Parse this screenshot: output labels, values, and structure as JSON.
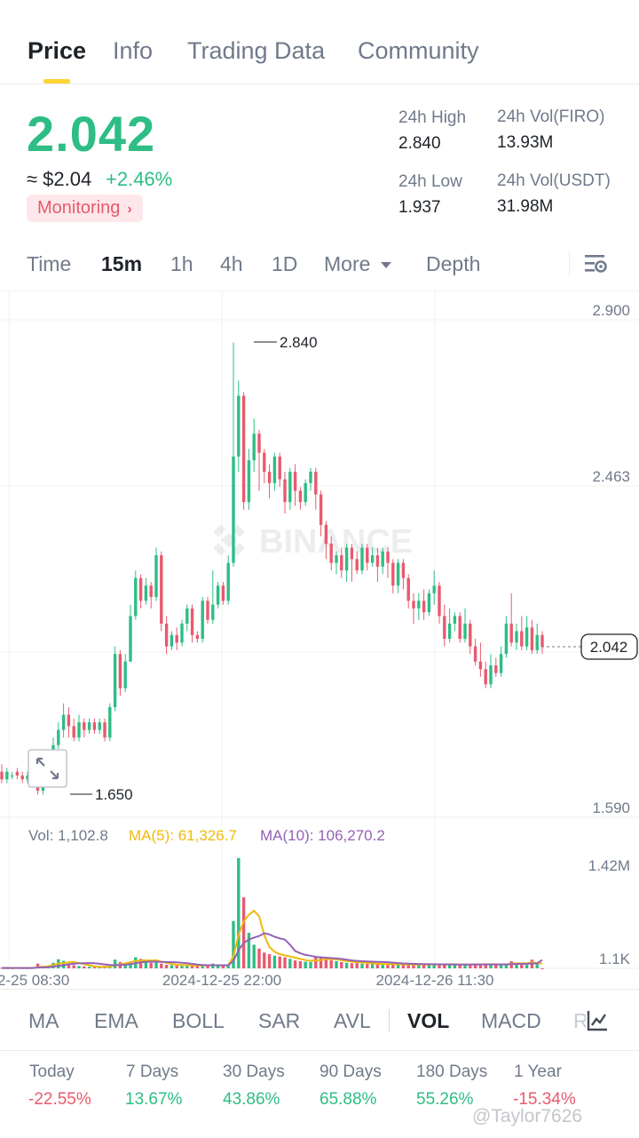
{
  "tabs": [
    {
      "label": "Price",
      "active": true
    },
    {
      "label": "Info"
    },
    {
      "label": "Trading Data"
    },
    {
      "label": "Community"
    }
  ],
  "price": {
    "last": "2.042",
    "usd": "≈ $2.04",
    "change": "+2.46%",
    "monitor_label": "Monitoring",
    "monitor_chevron": "›"
  },
  "stats": {
    "high_label": "24h High",
    "high_value": "2.840",
    "low_label": "24h Low",
    "low_value": "1.937",
    "vol_base_label": "24h Vol(FIRO)",
    "vol_base_value": "13.93M",
    "vol_quote_label": "24h Vol(USDT)",
    "vol_quote_value": "31.98M"
  },
  "timeframes": {
    "items": [
      "Time",
      "15m",
      "1h",
      "4h",
      "1D"
    ],
    "active": "15m",
    "more_label": "More",
    "depth_label": "Depth",
    "settings_icon": "chart-settings-icon"
  },
  "chart_data": {
    "type": "candlestick",
    "y_axis_labels": [
      "2.900",
      "2.463",
      "2.042",
      "1.590"
    ],
    "ylim": [
      1.59,
      2.9
    ],
    "x_axis_labels": [
      "2-25 08:30",
      "2024-12-25 22:00",
      "2024-12-26 11:30"
    ],
    "high_marker": "2.840",
    "low_marker": "1.650",
    "current_price_tag": "2.042",
    "watermark": "BINANCE",
    "colors": {
      "up": "#2ebd85",
      "down": "#e85a6e",
      "ma5": "#f0b90b",
      "ma10": "#9461b5"
    },
    "candles": [
      [
        1.71,
        1.69,
        1.73,
        1.68
      ],
      [
        1.69,
        1.71,
        1.72,
        1.68
      ],
      [
        1.7,
        1.7,
        1.71,
        1.69
      ],
      [
        1.71,
        1.7,
        1.72,
        1.69
      ],
      [
        1.7,
        1.69,
        1.71,
        1.68
      ],
      [
        1.69,
        1.7,
        1.71,
        1.68
      ],
      [
        1.69,
        1.68,
        1.7,
        1.67
      ],
      [
        1.68,
        1.66,
        1.69,
        1.65
      ],
      [
        1.66,
        1.69,
        1.7,
        1.65
      ],
      [
        1.69,
        1.72,
        1.73,
        1.68
      ],
      [
        1.72,
        1.78,
        1.8,
        1.71
      ],
      [
        1.78,
        1.82,
        1.84,
        1.77
      ],
      [
        1.82,
        1.86,
        1.89,
        1.8
      ],
      [
        1.86,
        1.83,
        1.88,
        1.8
      ],
      [
        1.83,
        1.8,
        1.85,
        1.79
      ],
      [
        1.8,
        1.84,
        1.86,
        1.79
      ],
      [
        1.84,
        1.82,
        1.85,
        1.8
      ],
      [
        1.82,
        1.84,
        1.85,
        1.81
      ],
      [
        1.84,
        1.82,
        1.85,
        1.81
      ],
      [
        1.82,
        1.84,
        1.85,
        1.81
      ],
      [
        1.84,
        1.8,
        1.85,
        1.79
      ],
      [
        1.8,
        1.88,
        1.89,
        1.79
      ],
      [
        1.88,
        2.02,
        2.04,
        1.87
      ],
      [
        2.02,
        1.93,
        2.03,
        1.91
      ],
      [
        1.93,
        2.0,
        2.02,
        1.92
      ],
      [
        2.0,
        2.12,
        2.15,
        2.0
      ],
      [
        2.12,
        2.22,
        2.24,
        2.11
      ],
      [
        2.22,
        2.16,
        2.23,
        2.14
      ],
      [
        2.16,
        2.2,
        2.22,
        2.15
      ],
      [
        2.2,
        2.17,
        2.21,
        2.14
      ],
      [
        2.17,
        2.28,
        2.3,
        2.16
      ],
      [
        2.28,
        2.1,
        2.29,
        2.08
      ],
      [
        2.1,
        2.04,
        2.12,
        2.02
      ],
      [
        2.04,
        2.07,
        2.08,
        2.03
      ],
      [
        2.07,
        2.05,
        2.09,
        2.03
      ],
      [
        2.05,
        2.1,
        2.11,
        2.04
      ],
      [
        2.1,
        2.14,
        2.15,
        2.08
      ],
      [
        2.14,
        2.07,
        2.15,
        2.05
      ],
      [
        2.07,
        2.06,
        2.08,
        2.05
      ],
      [
        2.06,
        2.16,
        2.17,
        2.05
      ],
      [
        2.16,
        2.11,
        2.17,
        2.1
      ],
      [
        2.11,
        2.15,
        2.24,
        2.1
      ],
      [
        2.15,
        2.2,
        2.21,
        2.14
      ],
      [
        2.2,
        2.16,
        2.21,
        2.15
      ],
      [
        2.16,
        2.26,
        2.28,
        2.15
      ],
      [
        2.26,
        2.54,
        2.84,
        2.25
      ],
      [
        2.54,
        2.7,
        2.74,
        2.5
      ],
      [
        2.7,
        2.42,
        2.71,
        2.4
      ],
      [
        2.42,
        2.53,
        2.56,
        2.4
      ],
      [
        2.53,
        2.6,
        2.64,
        2.5
      ],
      [
        2.6,
        2.55,
        2.61,
        2.45
      ],
      [
        2.55,
        2.5,
        2.56,
        2.47
      ],
      [
        2.5,
        2.47,
        2.52,
        2.43
      ],
      [
        2.47,
        2.54,
        2.55,
        2.45
      ],
      [
        2.54,
        2.48,
        2.55,
        2.46
      ],
      [
        2.48,
        2.42,
        2.5,
        2.39
      ],
      [
        2.42,
        2.5,
        2.51,
        2.4
      ],
      [
        2.5,
        2.45,
        2.52,
        2.41
      ],
      [
        2.45,
        2.42,
        2.46,
        2.4
      ],
      [
        2.42,
        2.47,
        2.48,
        2.41
      ],
      [
        2.47,
        2.5,
        2.51,
        2.45
      ],
      [
        2.5,
        2.44,
        2.51,
        2.4
      ],
      [
        2.44,
        2.36,
        2.45,
        2.33
      ],
      [
        2.36,
        2.31,
        2.37,
        2.27
      ],
      [
        2.31,
        2.26,
        2.33,
        2.24
      ],
      [
        2.26,
        2.28,
        2.29,
        2.23
      ],
      [
        2.28,
        2.24,
        2.3,
        2.22
      ],
      [
        2.24,
        2.3,
        2.31,
        2.21
      ],
      [
        2.3,
        2.27,
        2.31,
        2.21
      ],
      [
        2.27,
        2.24,
        2.29,
        2.23
      ],
      [
        2.24,
        2.3,
        2.31,
        2.23
      ],
      [
        2.3,
        2.26,
        2.31,
        2.24
      ],
      [
        2.26,
        2.28,
        2.3,
        2.25
      ],
      [
        2.28,
        2.25,
        2.3,
        2.21
      ],
      [
        2.25,
        2.29,
        2.3,
        2.23
      ],
      [
        2.29,
        2.26,
        2.3,
        2.22
      ],
      [
        2.26,
        2.2,
        2.27,
        2.18
      ],
      [
        2.2,
        2.26,
        2.27,
        2.18
      ],
      [
        2.26,
        2.22,
        2.27,
        2.19
      ],
      [
        2.22,
        2.16,
        2.23,
        2.14
      ],
      [
        2.16,
        2.14,
        2.18,
        2.1
      ],
      [
        2.14,
        2.16,
        2.18,
        2.11
      ],
      [
        2.16,
        2.13,
        2.19,
        2.11
      ],
      [
        2.13,
        2.18,
        2.19,
        2.12
      ],
      [
        2.18,
        2.2,
        2.24,
        2.15
      ],
      [
        2.2,
        2.12,
        2.21,
        2.1
      ],
      [
        2.12,
        2.06,
        2.15,
        2.04
      ],
      [
        2.06,
        2.1,
        2.14,
        2.05
      ],
      [
        2.1,
        2.12,
        2.13,
        2.08
      ],
      [
        2.12,
        2.06,
        2.13,
        2.05
      ],
      [
        2.06,
        2.1,
        2.14,
        2.05
      ],
      [
        2.1,
        2.04,
        2.11,
        2.02
      ],
      [
        2.04,
        2.0,
        2.06,
        1.99
      ],
      [
        2.0,
        1.98,
        2.05,
        1.96
      ],
      [
        1.98,
        1.94,
        2.0,
        1.93
      ],
      [
        1.94,
        1.99,
        2.02,
        1.93
      ],
      [
        1.99,
        1.97,
        2.01,
        1.96
      ],
      [
        1.97,
        2.02,
        2.04,
        1.96
      ],
      [
        2.02,
        2.1,
        2.12,
        2.01
      ],
      [
        2.1,
        2.05,
        2.18,
        2.04
      ],
      [
        2.05,
        2.08,
        2.1,
        2.03
      ],
      [
        2.08,
        2.04,
        2.12,
        2.03
      ],
      [
        2.04,
        2.09,
        2.12,
        2.03
      ],
      [
        2.09,
        2.03,
        2.11,
        2.02
      ],
      [
        2.03,
        2.07,
        2.1,
        2.02
      ],
      [
        2.07,
        2.04,
        2.08,
        2.02
      ]
    ],
    "volume": {
      "legend_vol": "Vol: 1,102.8",
      "legend_ma5": "MA(5): 61,326.7",
      "legend_ma10": "MA(10): 106,270.2",
      "y_axis_labels": [
        "1.42M",
        "1.1K"
      ],
      "ylim": [
        0,
        1420000
      ],
      "values": [
        6000,
        4000,
        3000,
        5000,
        4000,
        3000,
        5000,
        60000,
        25000,
        35000,
        70000,
        115000,
        95000,
        60000,
        40000,
        30000,
        25000,
        20000,
        15000,
        12000,
        18000,
        30000,
        110000,
        80000,
        55000,
        90000,
        140000,
        120000,
        90000,
        70000,
        85000,
        60000,
        45000,
        40000,
        35000,
        30000,
        45000,
        35000,
        40000,
        35000,
        30000,
        60000,
        30000,
        35000,
        50000,
        600000,
        1400000,
        900000,
        450000,
        300000,
        250000,
        200000,
        180000,
        160000,
        150000,
        140000,
        120000,
        100000,
        90000,
        85000,
        80000,
        150000,
        130000,
        120000,
        100000,
        90000,
        80000,
        70000,
        65000,
        75000,
        60000,
        55000,
        60000,
        50000,
        45000,
        55000,
        60000,
        50000,
        45000,
        50000,
        40000,
        45000,
        50000,
        55000,
        60000,
        45000,
        50000,
        55000,
        45000,
        40000,
        50000,
        55000,
        60000,
        50000,
        45000,
        50000,
        55000,
        45000,
        60000,
        90000,
        70000,
        50000,
        45000,
        110000,
        55000,
        1103
      ],
      "ma5": [
        5000,
        5000,
        5000,
        5000,
        5000,
        4000,
        4000,
        15000,
        20000,
        26000,
        39000,
        61000,
        68000,
        75000,
        79000,
        67000,
        53000,
        38000,
        26000,
        20000,
        20000,
        20000,
        37000,
        51000,
        63000,
        75000,
        95000,
        99000,
        101000,
        98000,
        103000,
        85000,
        70000,
        55000,
        45000,
        42000,
        39000,
        37000,
        37000,
        37000,
        37000,
        40000,
        39000,
        38000,
        41000,
        155000,
        423000,
        595000,
        680000,
        730000,
        660000,
        420000,
        270000,
        210000,
        180000,
        165000,
        150000,
        135000,
        120000,
        105000,
        95000,
        101000,
        105000,
        115000,
        117000,
        116000,
        104000,
        92000,
        85000,
        79000,
        74000,
        68000,
        63000,
        60000,
        54000,
        53000,
        54000,
        52000,
        51000,
        52000,
        49000,
        48000,
        48000,
        49000,
        50000,
        51000,
        51000,
        52000,
        51000,
        47000,
        48000,
        49000,
        50000,
        51000,
        52000,
        52000,
        51000,
        49000,
        51000,
        60000,
        63000,
        63000,
        63000,
        75000,
        66000,
        61327
      ],
      "ma10": [
        5000,
        5000,
        5000,
        5000,
        5000,
        5000,
        5000,
        10000,
        12000,
        14000,
        22000,
        32000,
        40000,
        50000,
        59000,
        63000,
        65000,
        66000,
        64000,
        58000,
        50000,
        42000,
        40000,
        42000,
        45000,
        53000,
        65000,
        75000,
        82000,
        86000,
        85000,
        82000,
        80000,
        78000,
        75000,
        71000,
        64000,
        56000,
        48000,
        42000,
        40000,
        40000,
        38000,
        38000,
        39000,
        95000,
        230000,
        320000,
        365000,
        390000,
        410000,
        445000,
        430000,
        400000,
        380000,
        365000,
        300000,
        220000,
        190000,
        170000,
        160000,
        145000,
        140000,
        135000,
        130000,
        125000,
        120000,
        110000,
        100000,
        95000,
        90000,
        87000,
        85000,
        82000,
        80000,
        78000,
        72000,
        66000,
        62000,
        60000,
        58000,
        55000,
        53000,
        52000,
        52000,
        51000,
        50000,
        50000,
        50000,
        49000,
        49000,
        49000,
        50000,
        50000,
        50000,
        50000,
        50000,
        50000,
        50000,
        54000,
        56000,
        56000,
        57000,
        62000,
        63000,
        106270
      ]
    }
  },
  "indicators": {
    "items": [
      "MA",
      "EMA",
      "BOLL",
      "SAR",
      "AVL",
      "VOL",
      "MACD",
      "R"
    ],
    "active": "VOL",
    "icon": "indicator-settings-icon"
  },
  "performance": [
    {
      "label": "Today",
      "value": "-22.55%",
      "dir": "neg"
    },
    {
      "label": "7 Days",
      "value": "13.67%",
      "dir": "pos"
    },
    {
      "label": "30 Days",
      "value": "43.86%",
      "dir": "pos"
    },
    {
      "label": "90 Days",
      "value": "65.88%",
      "dir": "pos"
    },
    {
      "label": "180 Days",
      "value": "55.26%",
      "dir": "pos"
    },
    {
      "label": "1 Year",
      "value": "-15.34%",
      "dir": "neg"
    }
  ],
  "watermark_user": "@Taylor7626"
}
